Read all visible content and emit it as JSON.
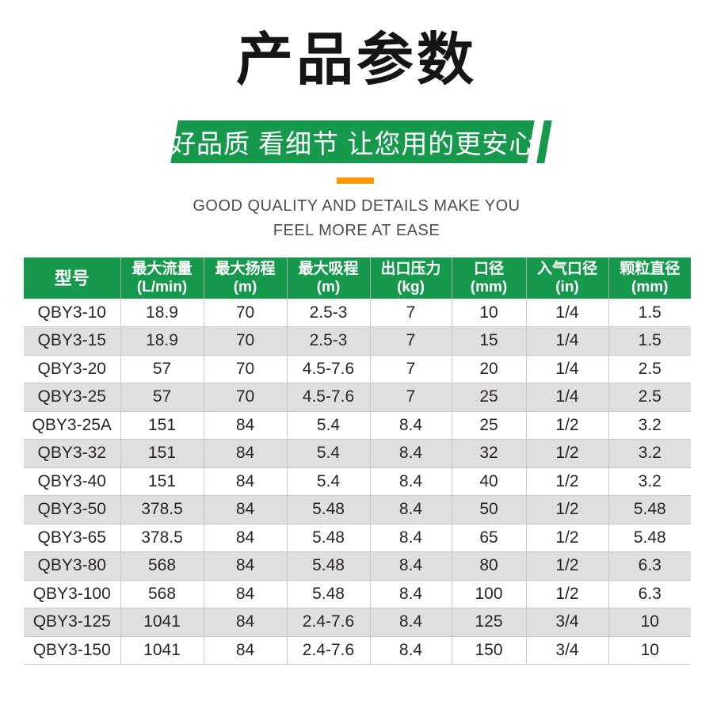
{
  "page": {
    "title": "产品参数",
    "banner_text": "好品质 看细节 让您用的更安心",
    "subtitle_en_line1": "GOOD QUALITY AND DETAILS MAKE YOU",
    "subtitle_en_line2": "FEEL MORE AT EASE",
    "colors": {
      "brand_green": "#17994d",
      "accent_orange": "#ff9800",
      "row_stripe_gray": "#e0dede",
      "table_border_gray": "#c8c8c8",
      "text_dark": "#2a2523"
    }
  },
  "table": {
    "columns": [
      {
        "name": "型号",
        "unit": ""
      },
      {
        "name": "最大流量",
        "unit": "(L/min)"
      },
      {
        "name": "最大扬程",
        "unit": "(m)"
      },
      {
        "name": "最大吸程",
        "unit": "(m)"
      },
      {
        "name": "出口压力",
        "unit": "(kg)"
      },
      {
        "name": "口径",
        "unit": "(mm)"
      },
      {
        "name": "入气口径",
        "unit": "(in)"
      },
      {
        "name": "颗粒直径",
        "unit": "(mm)"
      }
    ],
    "rows": [
      [
        "QBY3-10",
        "18.9",
        "70",
        "2.5-3",
        "7",
        "10",
        "1/4",
        "1.5"
      ],
      [
        "QBY3-15",
        "18.9",
        "70",
        "2.5-3",
        "7",
        "15",
        "1/4",
        "1.5"
      ],
      [
        "QBY3-20",
        "57",
        "70",
        "4.5-7.6",
        "7",
        "20",
        "1/4",
        "2.5"
      ],
      [
        "QBY3-25",
        "57",
        "70",
        "4.5-7.6",
        "7",
        "25",
        "1/4",
        "2.5"
      ],
      [
        "QBY3-25A",
        "151",
        "84",
        "5.4",
        "8.4",
        "25",
        "1/2",
        "3.2"
      ],
      [
        "QBY3-32",
        "151",
        "84",
        "5.4",
        "8.4",
        "32",
        "1/2",
        "3.2"
      ],
      [
        "QBY3-40",
        "151",
        "84",
        "5.4",
        "8.4",
        "40",
        "1/2",
        "3.2"
      ],
      [
        "QBY3-50",
        "378.5",
        "84",
        "5.48",
        "8.4",
        "50",
        "1/2",
        "5.48"
      ],
      [
        "QBY3-65",
        "378.5",
        "84",
        "5.48",
        "8.4",
        "65",
        "1/2",
        "5.48"
      ],
      [
        "QBY3-80",
        "568",
        "84",
        "5.48",
        "8.4",
        "80",
        "1/2",
        "6.3"
      ],
      [
        "QBY3-100",
        "568",
        "84",
        "5.48",
        "8.4",
        "100",
        "1/2",
        "6.3"
      ],
      [
        "QBY3-125",
        "1041",
        "84",
        "2.4-7.6",
        "8.4",
        "125",
        "3/4",
        "10"
      ],
      [
        "QBY3-150",
        "1041",
        "84",
        "2.4-7.6",
        "8.4",
        "150",
        "3/4",
        "10"
      ]
    ]
  }
}
